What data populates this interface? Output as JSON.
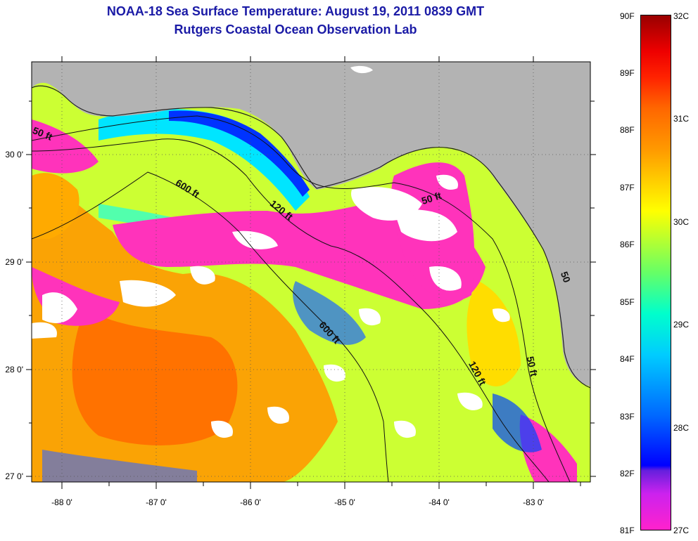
{
  "title": "NOAA-18 Sea Surface Temperature:  August 19, 2011 0839 GMT",
  "subtitle": "Rutgers Coastal Ocean Observation Lab",
  "axes": {
    "x_labels": [
      "-88 0'",
      "-87 0'",
      "-86 0'",
      "-85 0'",
      "-84 0'",
      "-83 0'"
    ],
    "y_labels": [
      "30 0'",
      "29 0'",
      "28 0'",
      "27 0'"
    ]
  },
  "contours": {
    "c600a": "600 ft",
    "c600b": "600 ft",
    "c120a": "120 ft",
    "c120b": "120 ft",
    "c50a": "50 ft",
    "c50b": "50 ft",
    "c50c": "50 ft",
    "c50d": "50"
  },
  "colorbar": {
    "f_labels": [
      "90F",
      "89F",
      "88F",
      "87F",
      "86F",
      "85F",
      "84F",
      "83F",
      "82F",
      "81F"
    ],
    "c_labels": [
      "32C",
      "31C",
      "30C",
      "29C",
      "28C",
      "27C"
    ]
  },
  "colors": {
    "land": "#b3b3b3",
    "cloud": "#ffffff",
    "title": "#1a1aa6"
  }
}
